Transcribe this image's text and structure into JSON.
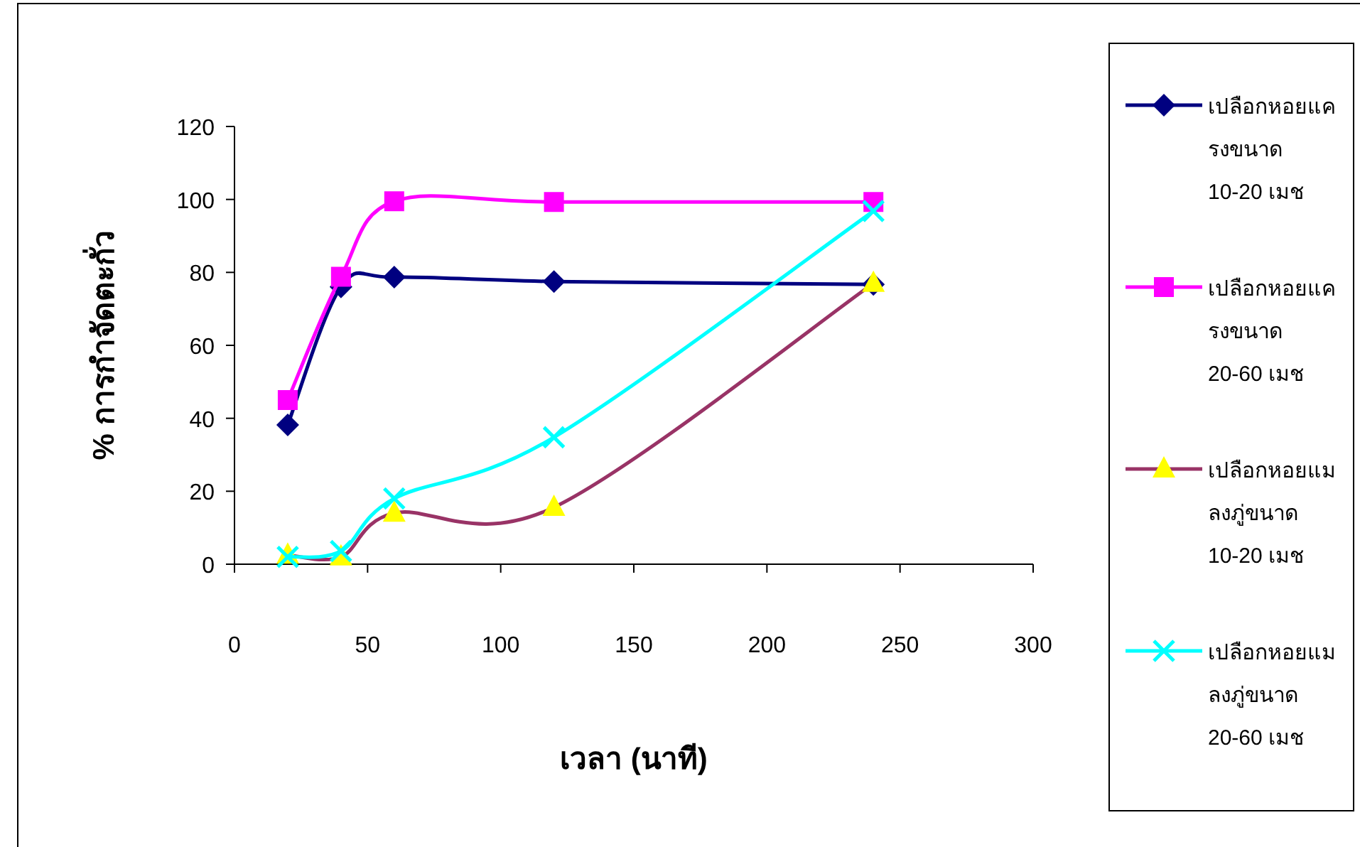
{
  "chart_data": {
    "type": "line",
    "xlabel": "เวลา (นาที)",
    "ylabel": "% การกำจัดตะกั่ว",
    "x": [
      20,
      40,
      60,
      120,
      240
    ],
    "series": [
      {
        "name": "เปลือกหอยแครงขนาด 10-20 เมช",
        "color": "#000080",
        "marker": "diamond",
        "values": [
          38.2,
          76,
          78.7,
          77.5,
          76.7
        ]
      },
      {
        "name": "เปลือกหอยแครงขนาด 20-60 เมช",
        "color": "#ff00ff",
        "marker": "square",
        "values": [
          45,
          78.8,
          99.5,
          99.3,
          99.3
        ]
      },
      {
        "name": "เปลือกหอยแมลงภู่ขนาด 10-20 เมช",
        "color": "#993366",
        "colors": [
          "#ffff00",
          "#ffff00",
          "#ffff00",
          "#ffff00",
          "#ffff00"
        ],
        "marker": "triangle",
        "values": [
          2.5,
          2,
          14,
          15.6,
          77
        ]
      },
      {
        "name": "เปลือกหอยแมลงภู่ขนาด 20-60 เมช",
        "color": "#00ffff",
        "marker": "cross",
        "values": [
          2,
          3.6,
          18,
          34.8,
          96.8
        ]
      }
    ],
    "xlim": [
      0,
      300
    ],
    "xticks": [
      0,
      50,
      100,
      150,
      200,
      250,
      300
    ],
    "ylim": [
      0,
      120
    ],
    "yticks": [
      0,
      20,
      40,
      60,
      80,
      100,
      120
    ],
    "grid": false,
    "legend": "right"
  }
}
